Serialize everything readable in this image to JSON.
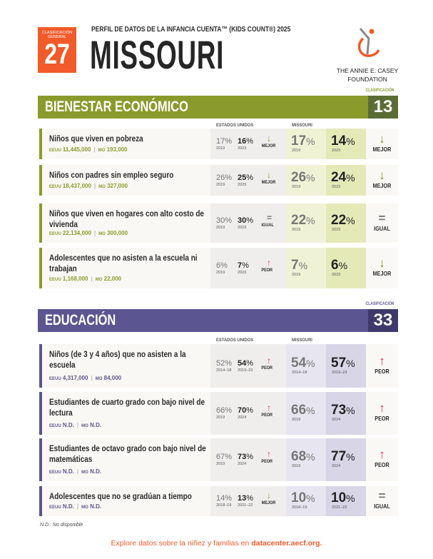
{
  "header": {
    "rank_label": "CLASIFICACIÓN GENERAL",
    "rank": "27",
    "subtitle": "PERFIL DE DATOS DE LA INFANCIA CUENTA™ (KIDS COUNT®) 2025",
    "state": "MISSOURI",
    "logo_text_1": "THE ANNIE E. CASEY",
    "logo_text_2": "FOUNDATION"
  },
  "colors": {
    "orange": "#f15a29",
    "economic": "#8a9a2c",
    "economic_dark": "#5b6b34",
    "education": "#5b5591",
    "education_dark": "#3e3a6b",
    "better": "#7a9a1e",
    "worse": "#f0244f"
  },
  "sections": [
    {
      "id": "economic",
      "title": "BIENESTAR ECONÓMICO",
      "rank_label": "CLASIFICACIÓN",
      "rank": "13",
      "us_header": "ESTADOS UNIDOS",
      "mo_header": "MISSOURI",
      "rows": [
        {
          "label": "Niños que viven en pobreza",
          "us_count": "11,445,000",
          "mo_count": "193,000",
          "us_a": "17",
          "us_a_year": "2019",
          "us_b": "16",
          "us_b_year": "2023",
          "us_trend": "MEJOR",
          "mo_a": "17",
          "mo_a_year": "2019",
          "mo_b": "14",
          "mo_b_year": "2023",
          "mo_trend": "MEJOR"
        },
        {
          "label": "Niños con padres sin empleo seguro",
          "us_count": "18,437,000",
          "mo_count": "327,000",
          "us_a": "26",
          "us_a_year": "2019",
          "us_b": "25",
          "us_b_year": "2023",
          "us_trend": "MEJOR",
          "mo_a": "26",
          "mo_a_year": "2019",
          "mo_b": "24",
          "mo_b_year": "2023",
          "mo_trend": "MEJOR"
        },
        {
          "label": "Niños que viven en hogares con alto costo de vivienda",
          "us_count": "22,134,000",
          "mo_count": "300,000",
          "us_a": "30",
          "us_a_year": "2019",
          "us_b": "30",
          "us_b_year": "2023",
          "us_trend": "IGUAL",
          "mo_a": "22",
          "mo_a_year": "2019",
          "mo_b": "22",
          "mo_b_year": "2023",
          "mo_trend": "IGUAL"
        },
        {
          "label": "Adolescentes que no asisten a la escuela ni trabajan",
          "us_count": "1,168,000",
          "mo_count": "22,000",
          "us_a": "6",
          "us_a_year": "2019",
          "us_b": "7",
          "us_b_year": "2023",
          "us_trend": "PEOR",
          "mo_a": "7",
          "mo_a_year": "2019",
          "mo_b": "6",
          "mo_b_year": "2023",
          "mo_trend": "MEJOR"
        }
      ]
    },
    {
      "id": "education",
      "title": "EDUCACIÓN",
      "rank_label": "CLASIFICACIÓN",
      "rank": "33",
      "us_header": "ESTADOS UNIDOS",
      "mo_header": "MISSOURI",
      "rows": [
        {
          "label": "Niños (de 3 y 4 años) que no asisten a la escuela",
          "us_count": "4,317,000",
          "mo_count": "84,000",
          "us_a": "52",
          "us_a_year": "2014–18",
          "us_b": "54",
          "us_b_year": "2019–23",
          "us_trend": "PEOR",
          "mo_a": "54",
          "mo_a_year": "2014–18",
          "mo_b": "57",
          "mo_b_year": "2019–23",
          "mo_trend": "PEOR"
        },
        {
          "label": "Estudiantes de cuarto grado con bajo nivel de lectura",
          "us_count": "N.D.",
          "mo_count": "N.D.",
          "us_a": "66",
          "us_a_year": "2019",
          "us_b": "70",
          "us_b_year": "2024",
          "us_trend": "PEOR",
          "mo_a": "66",
          "mo_a_year": "2019",
          "mo_b": "73",
          "mo_b_year": "2024",
          "mo_trend": "PEOR"
        },
        {
          "label": "Estudiantes de octavo grado con bajo nivel de matemáticas",
          "us_count": "N.D.",
          "mo_count": "N.D.",
          "us_a": "67",
          "us_a_year": "2019",
          "us_b": "73",
          "us_b_year": "2024",
          "us_trend": "PEOR",
          "mo_a": "68",
          "mo_a_year": "2019",
          "mo_b": "77",
          "mo_b_year": "2024",
          "mo_trend": "PEOR"
        },
        {
          "label": "Adolescentes que no se gradúan a tiempo",
          "us_count": "N.D.",
          "mo_count": "N.D.",
          "us_a": "14",
          "us_a_year": "2018–19",
          "us_b": "13",
          "us_b_year": "2021–22",
          "us_trend": "MEJOR",
          "mo_a": "10",
          "mo_a_year": "2018–19",
          "mo_b": "10",
          "mo_b_year": "2021–22",
          "mo_trend": "IGUAL"
        }
      ]
    }
  ],
  "labels": {
    "us_prefix": "EEUU",
    "mo_prefix": "MO",
    "percent": "%"
  },
  "note": "N.D.: No disponible",
  "footer": {
    "text": "Explore datos sobre la niñez y familias en ",
    "link": "datacenter.aecf.org."
  }
}
